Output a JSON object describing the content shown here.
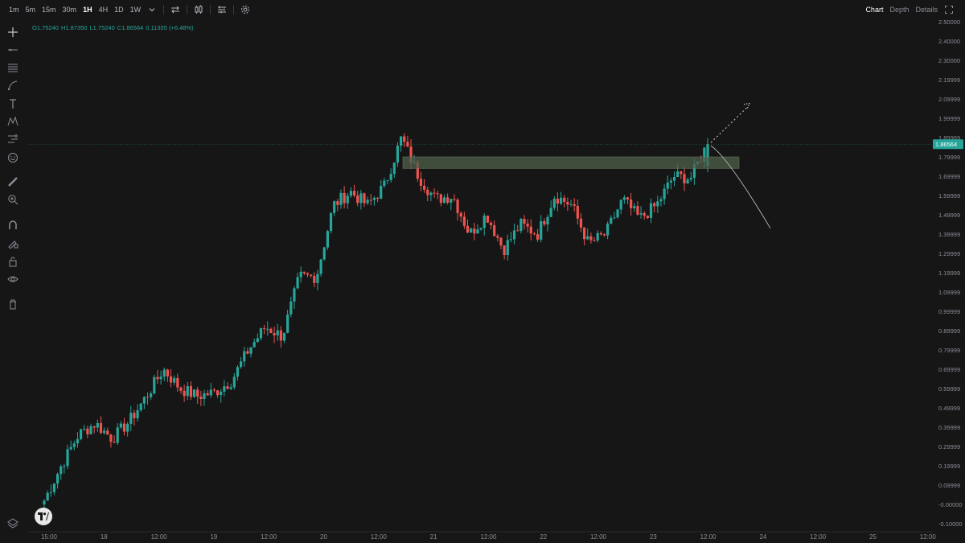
{
  "toolbar": {
    "timeframes": [
      "1m",
      "5m",
      "15m",
      "30m",
      "1H",
      "4H",
      "1D",
      "1W"
    ],
    "active_timeframe": "1H",
    "tabs": [
      "Chart",
      "Depth",
      "Details"
    ],
    "active_tab": "Chart"
  },
  "ohlc": {
    "open": "O1.75240",
    "high": "H1.87350",
    "low": "L1.75240",
    "close": "C1.86564",
    "change": "0.11355 (+6.48%)"
  },
  "sidebar_icons": [
    "crosshair-icon",
    "line-tool-icon",
    "fib-tool-icon",
    "brush-icon",
    "text-icon",
    "pattern-icon",
    "forecast-icon",
    "emoji-icon",
    "ruler-icon",
    "zoom-icon",
    "magnet-icon",
    "lock-drawing-icon",
    "lock-icon",
    "eye-icon",
    "trash-icon"
  ],
  "colors": {
    "up": "#26a69a",
    "down": "#ef5350",
    "background": "#161616",
    "grid": "#242424",
    "zone": "#4f5f4a"
  },
  "chart_data": {
    "type": "candlestick",
    "price_axis_labels": [
      "2.50000",
      "2.40000",
      "2.30000",
      "2.19999",
      "2.09999",
      "1.99999",
      "1.89999",
      "1.79999",
      "1.69999",
      "1.59999",
      "1.49999",
      "1.39999",
      "1.29999",
      "1.19999",
      "1.09999",
      "0.99999",
      "0.89999",
      "0.79999",
      "0.69999",
      "0.59999",
      "0.49999",
      "0.39999",
      "0.29999",
      "0.19999",
      "0.09999",
      "-0.00000",
      "-0.10000"
    ],
    "price_range": [
      -0.1,
      2.5
    ],
    "time_axis_labels": [
      "15:00",
      "18",
      "12:00",
      "19",
      "12:00",
      "20",
      "12:00",
      "21",
      "12:00",
      "22",
      "12:00",
      "23",
      "12:00",
      "24",
      "12:00",
      "25",
      "12:00"
    ],
    "last_price": "1.86564",
    "resistance_zone": [
      1.74,
      1.8
    ],
    "key_closes": [
      0.02,
      0.2,
      0.36,
      0.42,
      0.34,
      0.43,
      0.56,
      0.7,
      0.6,
      0.56,
      0.58,
      0.64,
      0.8,
      0.92,
      0.87,
      1.18,
      1.18,
      1.55,
      1.62,
      1.55,
      1.65,
      1.9,
      1.7,
      1.58,
      1.6,
      1.4,
      1.5,
      1.32,
      1.45,
      1.4,
      1.6,
      1.55,
      1.35,
      1.4,
      1.58,
      1.48,
      1.55,
      1.7,
      1.69,
      1.87
    ]
  }
}
